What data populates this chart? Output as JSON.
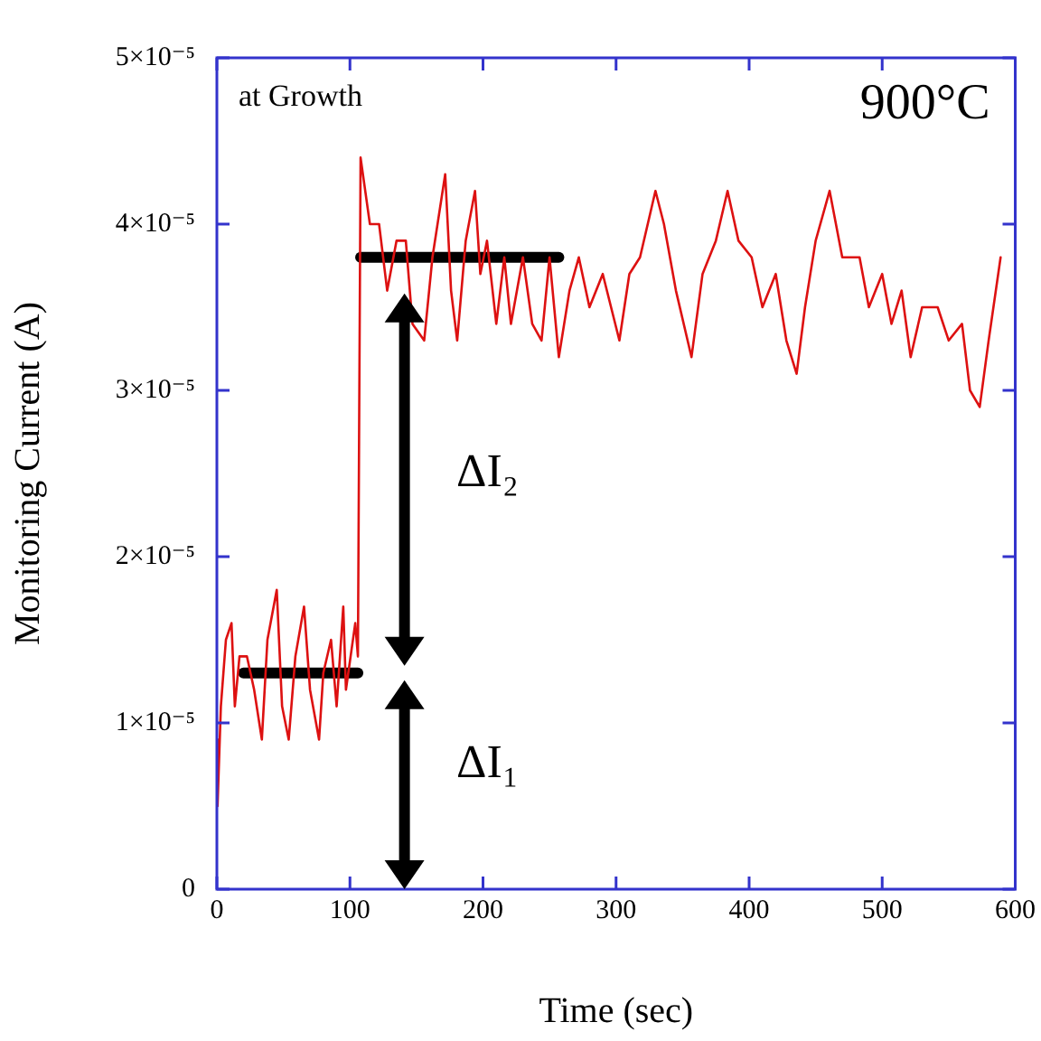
{
  "chart_data": {
    "type": "line",
    "xlabel": "Time (sec)",
    "ylabel": "Monitoring Current (A)",
    "xlim": [
      0,
      600
    ],
    "xticks": [
      0,
      100,
      200,
      300,
      400,
      500,
      600
    ],
    "ylim": [
      0,
      5e-05
    ],
    "yticks": [
      0,
      {
        "value": 1e-05,
        "label": "1×10⁻⁵"
      },
      {
        "value": 2e-05,
        "label": "2×10⁻⁵"
      },
      {
        "value": 3e-05,
        "label": "3×10⁻⁵"
      },
      {
        "value": 4e-05,
        "label": "4×10⁻⁵"
      },
      {
        "value": 5e-05,
        "label": "5×10⁻⁵"
      }
    ],
    "grid": false,
    "legend": false,
    "marker": "none",
    "line_style": "solid",
    "annotations": [
      "at Growth",
      "900°C",
      "ΔI₂",
      "ΔI₁"
    ],
    "series": [
      {
        "color": "#dd1111",
        "x": [
          0,
          0.5,
          3,
          6.8,
          11,
          13.5,
          17,
          22.6,
          28,
          33.8,
          38,
          45,
          49,
          54,
          59,
          65.5,
          70,
          76.8,
          80,
          85.8,
          90,
          95,
          97,
          104,
          106,
          108,
          115,
          121.9,
          128,
          135,
          142,
          147,
          155.8,
          162,
          171.6,
          176,
          180.6,
          187,
          194,
          198,
          203,
          210,
          216,
          221,
          230,
          237,
          244,
          250,
          257,
          265,
          272,
          280,
          290,
          302.5,
          310,
          318,
          329.6,
          336,
          345,
          356.7,
          365,
          375,
          383.8,
          392,
          401.9,
          410,
          420,
          428,
          435.7,
          442,
          450,
          460.5,
          470,
          483,
          490,
          500,
          507,
          514.6,
          521.4,
          530,
          541.7,
          550,
          560,
          566,
          573.3,
          580,
          589
        ],
        "values": [
          9e-06,
          5e-06,
          1.1e-05,
          1.5e-05,
          1.6e-05,
          1.1e-05,
          1.4e-05,
          1.4e-05,
          1.2e-05,
          9e-06,
          1.5e-05,
          1.8e-05,
          1.1e-05,
          9e-06,
          1.4e-05,
          1.7e-05,
          1.2e-05,
          9e-06,
          1.3e-05,
          1.5e-05,
          1.1e-05,
          1.7e-05,
          1.2e-05,
          1.6e-05,
          1.4e-05,
          4.4e-05,
          4e-05,
          4e-05,
          3.6e-05,
          3.9e-05,
          3.9e-05,
          3.4e-05,
          3.3e-05,
          3.8e-05,
          4.3e-05,
          3.6e-05,
          3.3e-05,
          3.9e-05,
          4.2e-05,
          3.7e-05,
          3.9e-05,
          3.4e-05,
          3.8e-05,
          3.4e-05,
          3.8e-05,
          3.4e-05,
          3.3e-05,
          3.8e-05,
          3.2e-05,
          3.6e-05,
          3.8e-05,
          3.5e-05,
          3.7e-05,
          3.3e-05,
          3.7e-05,
          3.8e-05,
          4.2e-05,
          4e-05,
          3.6e-05,
          3.2e-05,
          3.7e-05,
          3.9e-05,
          4.2e-05,
          3.9e-05,
          3.8e-05,
          3.5e-05,
          3.7e-05,
          3.3e-05,
          3.1e-05,
          3.5e-05,
          3.9e-05,
          4.2e-05,
          3.8e-05,
          3.8e-05,
          3.5e-05,
          3.7e-05,
          3.4e-05,
          3.6e-05,
          3.2e-05,
          3.5e-05,
          3.5e-05,
          3.3e-05,
          3.4e-05,
          3e-05,
          2.9e-05,
          3.3e-05,
          3.8e-05
        ]
      },
      {
        "type": "line",
        "color": "#000000",
        "x": [
          20,
          106
        ],
        "values": [
          1.3e-05,
          1.3e-05
        ]
      },
      {
        "type": "line",
        "color": "#000000",
        "x": [
          108,
          257
        ],
        "values": [
          3.8e-05,
          3.8e-05
        ]
      }
    ]
  }
}
